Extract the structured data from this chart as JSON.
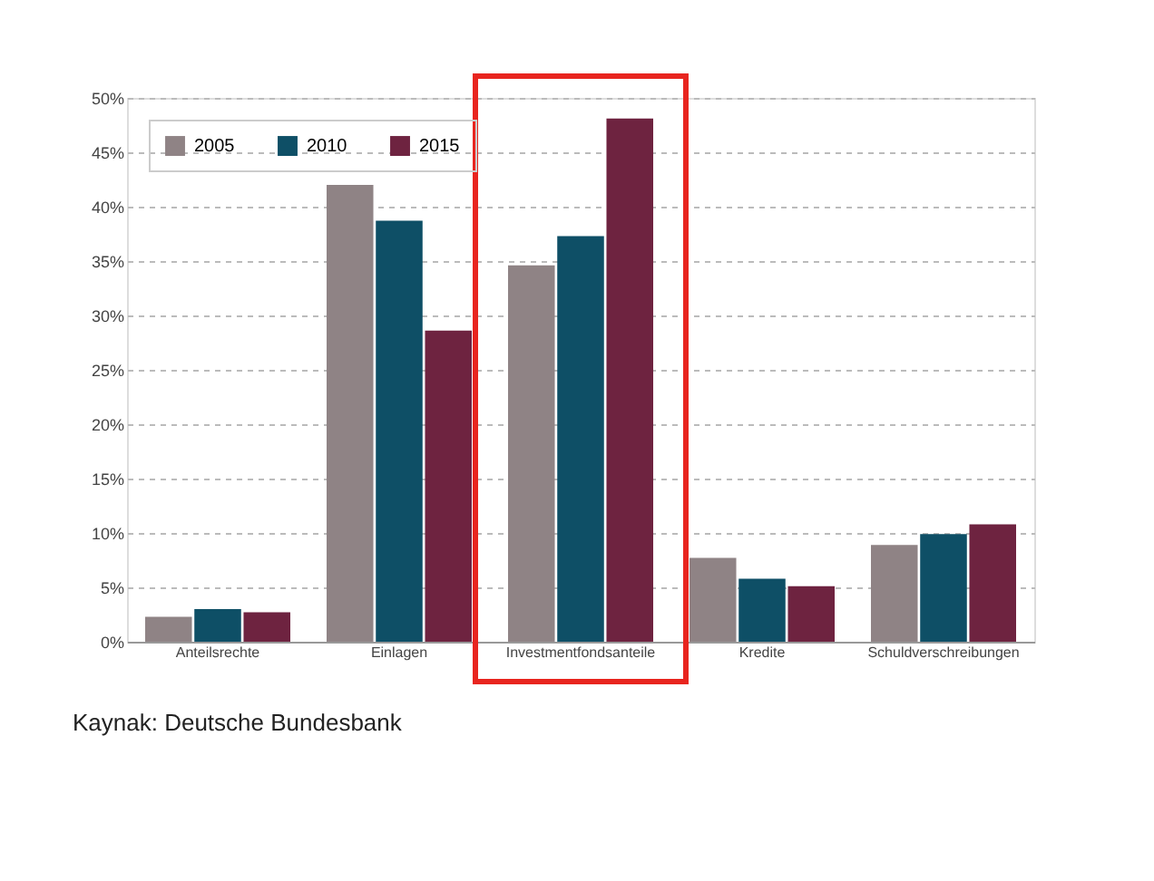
{
  "chart_data": {
    "type": "bar",
    "categories": [
      "Anteilsrechte",
      "Einlagen",
      "Investmentfondsanteile",
      "Kredite",
      "Schuldverschreibungen"
    ],
    "series": [
      {
        "name": "2005",
        "color": "#8f8385",
        "values": [
          2.3,
          42,
          34.6,
          7.7,
          8.9
        ]
      },
      {
        "name": "2010",
        "color": "#0e4f66",
        "values": [
          3.0,
          38.7,
          37.3,
          5.8,
          9.9
        ]
      },
      {
        "name": "2015",
        "color": "#6e2340",
        "values": [
          2.7,
          28.6,
          48.1,
          5.1,
          10.8
        ]
      }
    ],
    "ylim": [
      0,
      50
    ],
    "yticks": [
      {
        "value": 0,
        "label": "0%"
      },
      {
        "value": 5,
        "label": "5%"
      },
      {
        "value": 10,
        "label": "10%"
      },
      {
        "value": 15,
        "label": "15%"
      },
      {
        "value": 20,
        "label": "20%"
      },
      {
        "value": 25,
        "label": "25%"
      },
      {
        "value": 30,
        "label": "30%"
      },
      {
        "value": 35,
        "label": "35%"
      },
      {
        "value": 40,
        "label": "40%"
      },
      {
        "value": 45,
        "label": "45%"
      },
      {
        "value": 50,
        "label": "50%"
      }
    ],
    "grid": "y",
    "legend": "top left",
    "annotations": [
      "Kaynak: Deutsche Bundesbank"
    ]
  }
}
